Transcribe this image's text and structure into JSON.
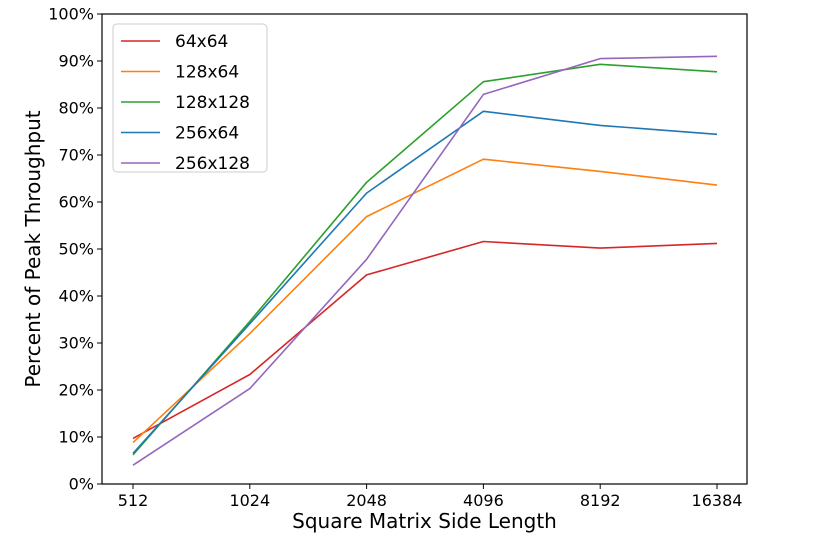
{
  "chart_data": {
    "type": "line",
    "title": "",
    "xlabel": "Square Matrix Side Length",
    "ylabel": "Percent of Peak Throughput",
    "categories": [
      "512",
      "1024",
      "2048",
      "4096",
      "8192",
      "16384"
    ],
    "ylim": [
      0,
      100
    ],
    "yticks": [
      0,
      10,
      20,
      30,
      40,
      50,
      60,
      70,
      80,
      90,
      100
    ],
    "ytick_labels": [
      "0%",
      "10%",
      "20%",
      "30%",
      "40%",
      "50%",
      "60%",
      "70%",
      "80%",
      "90%",
      "100%"
    ],
    "grid": false,
    "legend_position": "top-left",
    "series": [
      {
        "name": "64x64",
        "color": "#d62728",
        "values": [
          9.7,
          23.3,
          44.5,
          51.6,
          50.2,
          51.2
        ]
      },
      {
        "name": "128x64",
        "color": "#ff7f0e",
        "values": [
          8.8,
          32.0,
          56.9,
          69.1,
          66.5,
          63.6
        ]
      },
      {
        "name": "128x128",
        "color": "#2ca02c",
        "values": [
          6.2,
          34.6,
          64.2,
          85.6,
          89.3,
          87.7
        ]
      },
      {
        "name": "256x64",
        "color": "#1f77b4",
        "values": [
          6.5,
          34.1,
          61.9,
          79.3,
          76.3,
          74.4
        ]
      },
      {
        "name": "256x128",
        "color": "#9467bd",
        "values": [
          4.0,
          20.3,
          47.8,
          82.9,
          90.5,
          91.0
        ]
      }
    ]
  }
}
